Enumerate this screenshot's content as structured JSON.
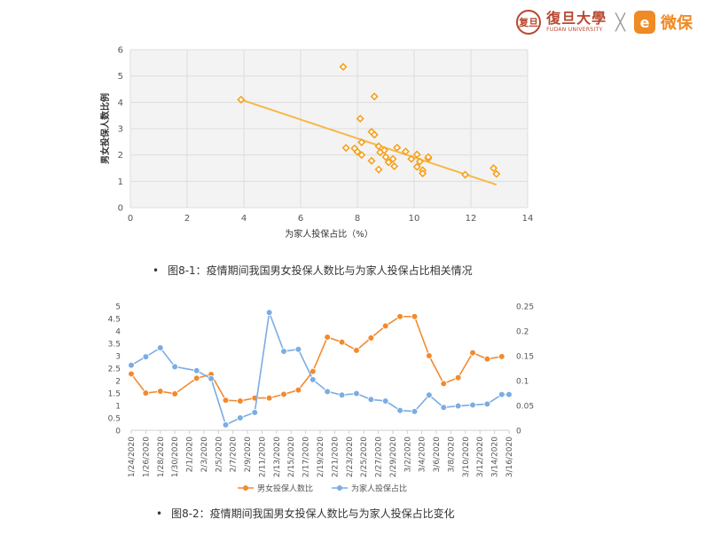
{
  "logos": {
    "fudan_seal_text": "复旦",
    "fudan_name": "復旦大學",
    "fudan_english": "FUDAN UNIVERSITY",
    "cross": "╳",
    "weibao_mark": "e",
    "weibao_name": "微保"
  },
  "captions": {
    "fig1": "图8-1：疫情期间我国男女投保人数比与为家人投保占比相关情况",
    "fig2": "图8-2：疫情期间我国男女投保人数比与为家人投保占比变化",
    "bullet": "•"
  },
  "chart_data": [
    {
      "type": "scatter",
      "title": "",
      "xlabel": "为家人投保占比（%）",
      "ylabel": "男女投保人数比例",
      "xlim": [
        0,
        14
      ],
      "ylim": [
        0,
        6
      ],
      "xticks": [
        0,
        2,
        4,
        6,
        8,
        10,
        12,
        14
      ],
      "yticks": [
        0,
        1,
        2,
        3,
        4,
        5,
        6
      ],
      "grid": true,
      "marker_color": "#f5a11f",
      "trendline_color": "#f7b84a",
      "trendline": [
        [
          3.9,
          4.1
        ],
        [
          12.9,
          0.87
        ]
      ],
      "points": [
        [
          3.9,
          4.1
        ],
        [
          7.5,
          5.35
        ],
        [
          8.6,
          4.22
        ],
        [
          8.1,
          3.38
        ],
        [
          8.5,
          2.88
        ],
        [
          8.6,
          2.77
        ],
        [
          7.6,
          2.27
        ],
        [
          7.9,
          2.25
        ],
        [
          8.0,
          2.12
        ],
        [
          8.15,
          2.48
        ],
        [
          8.15,
          2.0
        ],
        [
          8.5,
          1.78
        ],
        [
          8.75,
          2.33
        ],
        [
          8.8,
          2.1
        ],
        [
          8.75,
          1.45
        ],
        [
          8.95,
          2.18
        ],
        [
          9.0,
          1.92
        ],
        [
          9.1,
          1.72
        ],
        [
          9.25,
          1.85
        ],
        [
          9.3,
          1.57
        ],
        [
          9.4,
          2.28
        ],
        [
          9.7,
          2.13
        ],
        [
          9.9,
          1.85
        ],
        [
          10.1,
          2.02
        ],
        [
          10.1,
          1.55
        ],
        [
          10.2,
          1.75
        ],
        [
          10.3,
          1.42
        ],
        [
          10.3,
          1.3
        ],
        [
          10.5,
          1.87
        ],
        [
          10.5,
          1.92
        ],
        [
          11.8,
          1.25
        ],
        [
          12.8,
          1.5
        ],
        [
          12.9,
          1.28
        ]
      ]
    },
    {
      "type": "line",
      "title": "",
      "categories": [
        "1/24/2020",
        "1/25/2020",
        "1/26/2020",
        "1/27/2020",
        "1/28/2020",
        "1/29/2020",
        "1/30/2020",
        "1/31/2020",
        "2/1/2020",
        "2/2/2020",
        "2/3/2020",
        "2/4/2020",
        "2/5/2020",
        "2/6/2020",
        "2/7/2020",
        "2/8/2020",
        "2/9/2020",
        "2/10/2020",
        "2/11/2020",
        "2/12/2020",
        "2/13/2020",
        "2/14/2020",
        "2/15/2020",
        "2/16/2020",
        "2/17/2020",
        "2/18/2020",
        "2/19/2020",
        "2/20/2020",
        "2/21/2020",
        "2/22/2020",
        "2/23/2020",
        "2/24/2020",
        "2/25/2020",
        "2/26/2020",
        "2/27/2020",
        "2/28/2020",
        "2/29/2020",
        "3/1/2020",
        "3/2/2020",
        "3/3/2020",
        "3/4/2020",
        "3/5/2020",
        "3/6/2020",
        "3/7/2020",
        "3/8/2020",
        "3/9/2020",
        "3/10/2020",
        "3/11/2020",
        "3/12/2020",
        "3/13/2020",
        "3/14/2020",
        "3/15/2020",
        "3/16/2020"
      ],
      "tick_labels": [
        "1/24/2020",
        "1/26/2020",
        "1/28/2020",
        "1/30/2020",
        "2/1/2020",
        "2/3/2020",
        "2/5/2020",
        "2/7/2020",
        "2/9/2020",
        "2/11/2020",
        "2/13/2020",
        "2/15/2020",
        "2/17/2020",
        "2/19/2020",
        "2/21/2020",
        "2/23/2020",
        "2/25/2020",
        "2/27/2020",
        "2/29/2020",
        "3/2/2020",
        "3/4/2020",
        "3/6/2020",
        "3/8/2020",
        "3/10/2020",
        "3/12/2020",
        "3/14/2020",
        "3/16/2020"
      ],
      "ylim_left": [
        0,
        5
      ],
      "yticks_left": [
        "0",
        "0.5",
        "1",
        "1.5",
        "2",
        "2.5",
        "3",
        "3.5",
        "4",
        "4.5",
        "5"
      ],
      "ylim_right": [
        0,
        0.25
      ],
      "yticks_right": [
        "0",
        "0.05",
        "0.1",
        "0.15",
        "0.2",
        "0.25"
      ],
      "grid": false,
      "legend_position": "bottom",
      "series": [
        {
          "name": "男女投保人数比",
          "axis": "left",
          "color": "#f28a2e",
          "x": [
            "1/24/2020",
            "1/26/2020",
            "1/28/2020",
            "1/30/2020",
            "2/2/2020",
            "2/4/2020",
            "2/6/2020",
            "2/8/2020",
            "2/10/2020",
            "2/12/2020",
            "2/14/2020",
            "2/16/2020",
            "2/18/2020",
            "2/20/2020",
            "2/22/2020",
            "2/24/2020",
            "2/26/2020",
            "2/28/2020",
            "3/1/2020",
            "3/3/2020",
            "3/5/2020",
            "3/7/2020",
            "3/9/2020",
            "3/11/2020",
            "3/13/2020",
            "3/15/2020"
          ],
          "values": [
            2.27,
            1.5,
            1.57,
            1.47,
            2.1,
            2.25,
            1.21,
            1.18,
            1.3,
            1.3,
            1.45,
            1.62,
            2.37,
            3.75,
            3.55,
            3.22,
            3.72,
            4.2,
            4.58,
            4.58,
            3.0,
            1.88,
            2.12,
            3.12,
            2.87,
            2.97
          ]
        },
        {
          "name": "为家人投保占比",
          "axis": "right",
          "color": "#7cace3",
          "x": [
            "1/24/2020",
            "1/26/2020",
            "1/28/2020",
            "1/30/2020",
            "2/2/2020",
            "2/4/2020",
            "2/6/2020",
            "2/8/2020",
            "2/10/2020",
            "2/12/2020",
            "2/14/2020",
            "2/16/2020",
            "2/18/2020",
            "2/20/2020",
            "2/22/2020",
            "2/24/2020",
            "2/26/2020",
            "2/28/2020",
            "3/1/2020",
            "3/3/2020",
            "3/5/2020",
            "3/7/2020",
            "3/9/2020",
            "3/11/2020",
            "3/13/2020",
            "3/15/2020",
            "3/16/2020"
          ],
          "values": [
            0.131,
            0.148,
            0.166,
            0.128,
            0.12,
            0.104,
            0.011,
            0.025,
            0.036,
            0.237,
            0.159,
            0.163,
            0.102,
            0.078,
            0.071,
            0.074,
            0.062,
            0.059,
            0.04,
            0.038,
            0.071,
            0.046,
            0.049,
            0.051,
            0.053,
            0.072,
            0.072
          ]
        }
      ]
    }
  ]
}
